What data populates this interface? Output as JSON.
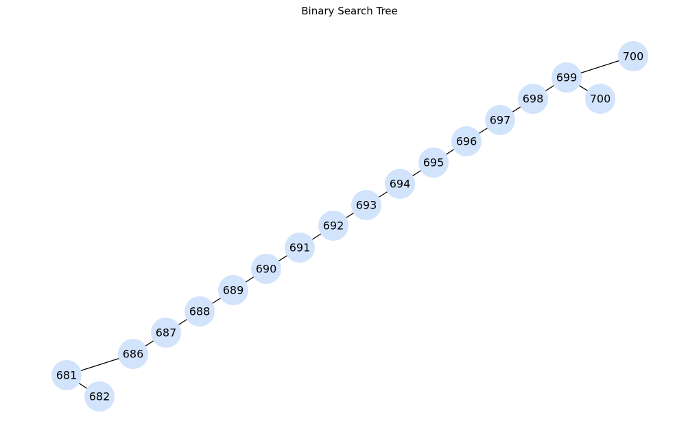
{
  "title": "Binary Search Tree",
  "colors": {
    "node_fill": "#d2e3fc",
    "edge": "#000000",
    "text": "#000000"
  },
  "tree": {
    "nodes": [
      {
        "id": "n700a",
        "label": "700"
      },
      {
        "id": "n699",
        "label": "699"
      },
      {
        "id": "n698",
        "label": "698"
      },
      {
        "id": "n700b",
        "label": "700"
      },
      {
        "id": "n697",
        "label": "697"
      },
      {
        "id": "n696",
        "label": "696"
      },
      {
        "id": "n695",
        "label": "695"
      },
      {
        "id": "n694",
        "label": "694"
      },
      {
        "id": "n693",
        "label": "693"
      },
      {
        "id": "n692",
        "label": "692"
      },
      {
        "id": "n691",
        "label": "691"
      },
      {
        "id": "n690",
        "label": "690"
      },
      {
        "id": "n689",
        "label": "689"
      },
      {
        "id": "n688",
        "label": "688"
      },
      {
        "id": "n687",
        "label": "687"
      },
      {
        "id": "n686",
        "label": "686"
      },
      {
        "id": "n681",
        "label": "681"
      },
      {
        "id": "n682",
        "label": "682"
      }
    ],
    "edges": [
      [
        "n700a",
        "n699"
      ],
      [
        "n699",
        "n698"
      ],
      [
        "n699",
        "n700b"
      ],
      [
        "n698",
        "n697"
      ],
      [
        "n697",
        "n696"
      ],
      [
        "n696",
        "n695"
      ],
      [
        "n695",
        "n694"
      ],
      [
        "n694",
        "n693"
      ],
      [
        "n693",
        "n692"
      ],
      [
        "n692",
        "n691"
      ],
      [
        "n691",
        "n690"
      ],
      [
        "n690",
        "n689"
      ],
      [
        "n689",
        "n688"
      ],
      [
        "n688",
        "n687"
      ],
      [
        "n687",
        "n686"
      ],
      [
        "n686",
        "n681"
      ],
      [
        "n681",
        "n682"
      ]
    ]
  }
}
